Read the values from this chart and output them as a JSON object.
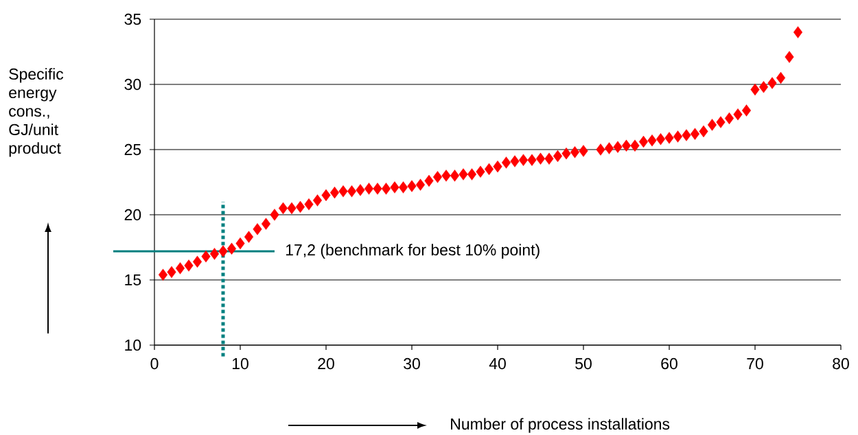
{
  "chart_data": {
    "type": "scatter",
    "xlabel": "Number of process installations",
    "ylabel": "Specific energy cons., GJ/unit product",
    "x": [
      1,
      2,
      3,
      4,
      5,
      6,
      7,
      8,
      9,
      10,
      11,
      12,
      13,
      14,
      15,
      16,
      17,
      18,
      19,
      20,
      21,
      22,
      23,
      24,
      25,
      26,
      27,
      28,
      29,
      30,
      31,
      32,
      33,
      34,
      35,
      36,
      37,
      38,
      39,
      40,
      41,
      42,
      43,
      44,
      45,
      46,
      47,
      48,
      49,
      50,
      52,
      53,
      54,
      55,
      56,
      57,
      58,
      59,
      60,
      61,
      62,
      63,
      64,
      65,
      66,
      67,
      68,
      69,
      70,
      71,
      72,
      73,
      74,
      75
    ],
    "values": [
      15.4,
      15.6,
      15.9,
      16.1,
      16.4,
      16.8,
      17.0,
      17.2,
      17.4,
      17.8,
      18.3,
      18.9,
      19.3,
      20.0,
      20.5,
      20.5,
      20.6,
      20.8,
      21.1,
      21.5,
      21.7,
      21.8,
      21.8,
      21.9,
      22.0,
      22.0,
      22.0,
      22.1,
      22.1,
      22.2,
      22.3,
      22.6,
      22.9,
      23.0,
      23.0,
      23.1,
      23.1,
      23.3,
      23.5,
      23.7,
      24.0,
      24.1,
      24.2,
      24.2,
      24.3,
      24.3,
      24.5,
      24.7,
      24.8,
      24.9,
      25.0,
      25.1,
      25.2,
      25.3,
      25.3,
      25.6,
      25.7,
      25.8,
      25.9,
      26.0,
      26.1,
      26.2,
      26.4,
      26.9,
      27.1,
      27.4,
      27.7,
      28.0,
      29.6,
      29.8,
      30.1,
      30.5,
      32.1,
      34.0
    ],
    "color": "#ff0000",
    "marker": "diamond",
    "xlim": [
      0,
      80
    ],
    "xticks": [
      0,
      10,
      20,
      30,
      40,
      50,
      60,
      70,
      80
    ],
    "ylim": [
      10,
      35
    ],
    "yticks": [
      10,
      15,
      20,
      25,
      30,
      35
    ],
    "grid": "y",
    "ref_lines": [
      {
        "axis": "y",
        "value": 17.2,
        "label": "17,2 (benchmark for best 10% point)",
        "color": "#008080",
        "line_style": "solid"
      },
      {
        "axis": "x",
        "value": 8,
        "color": "#008080",
        "line_style": "dotted"
      }
    ]
  }
}
